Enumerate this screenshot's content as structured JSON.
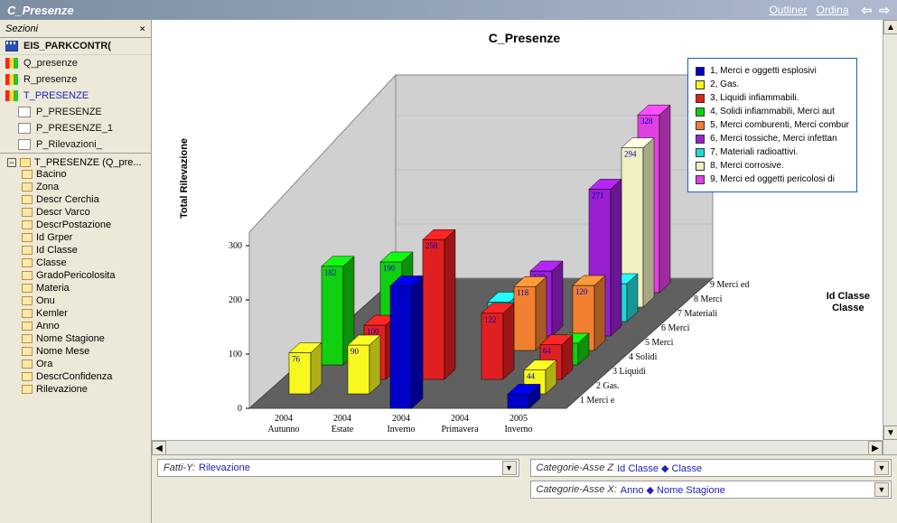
{
  "window": {
    "title": "C_Presenze"
  },
  "toolbar_links": [
    "Outliner",
    "Ordina"
  ],
  "sidebar": {
    "title": "Sezioni",
    "top_section": "EIS_PARKCONTR(",
    "items": [
      {
        "label": "Q_presenze"
      },
      {
        "label": "R_presenze"
      },
      {
        "label": "T_PRESENZE",
        "selected": true,
        "children": [
          {
            "label": "P_PRESENZE"
          },
          {
            "label": "P_PRESENZE_1"
          },
          {
            "label": "P_Rilevazioni_"
          }
        ]
      }
    ],
    "tree_root": "T_PRESENZE (Q_pre...",
    "fields": [
      "Bacino",
      "Zona",
      "Descr Cerchia",
      "Descr Varco",
      "DescrPostazione",
      "Id Grper",
      "Id Classe",
      "Classe",
      "GradoPericolosita",
      "Materia",
      "Onu",
      "Kemler",
      "Anno",
      "Nome Stagione",
      "Nome Mese",
      "Ora",
      "DescrConfidenza",
      "Rilevazione"
    ]
  },
  "chart": {
    "title": "C_Presenze",
    "type": "bar3d",
    "y_label": "Total Rilevazione",
    "z_label": "Id Classe\nClasse",
    "ylim": [
      0,
      300
    ],
    "ytick_step": 100,
    "background_color": "#ffffff",
    "wall_color": "#d0d0d0",
    "floor_color": "#606060",
    "x_categories": [
      {
        "year": "2004",
        "season": "Autunno"
      },
      {
        "year": "2004",
        "season": "Estate"
      },
      {
        "year": "2004",
        "season": "Inverno"
      },
      {
        "year": "2004",
        "season": "Primavera"
      },
      {
        "year": "2005",
        "season": "Inverno"
      }
    ],
    "z_categories": [
      "1 Merci e",
      "2 Gas.",
      "3 Liquidi",
      "4 Solidi",
      "5 Merci",
      "6 Merci",
      "7 Materiali",
      "8 Merci",
      "9 Merci ed"
    ],
    "series_colors": {
      "1": "#0000c8",
      "2": "#f8f820",
      "3": "#e02020",
      "4": "#10d010",
      "5": "#f08030",
      "6": "#9820d0",
      "7": "#20d8d8",
      "8": "#f0f0c0",
      "9": "#e040e0"
    },
    "data": [
      {
        "x": 0,
        "z": 2,
        "v": 76
      },
      {
        "x": 0,
        "z": 4,
        "v": 182
      },
      {
        "x": 1,
        "z": 2,
        "v": 90
      },
      {
        "x": 1,
        "z": 3,
        "v": 100
      },
      {
        "x": 1,
        "z": 4,
        "v": 190
      },
      {
        "x": 2,
        "z": 1,
        "v": 226
      },
      {
        "x": 2,
        "z": 3,
        "v": 258
      },
      {
        "x": 2,
        "z": 7,
        "v": 36
      },
      {
        "x": 3,
        "z": 3,
        "v": 122
      },
      {
        "x": 3,
        "z": 5,
        "v": 118
      },
      {
        "x": 3,
        "z": 6,
        "v": 120
      },
      {
        "x": 4,
        "z": 1,
        "v": 26
      },
      {
        "x": 4,
        "z": 2,
        "v": 44
      },
      {
        "x": 4,
        "z": 3,
        "v": 64
      },
      {
        "x": 4,
        "z": 5,
        "v": 120
      },
      {
        "x": 4,
        "z": 6,
        "v": 271
      },
      {
        "x": 4,
        "z": 8,
        "v": 294
      },
      {
        "x": 4,
        "z": 9,
        "v": 328
      },
      {
        "x": 4,
        "z": 7,
        "v": 70
      },
      {
        "x": 4,
        "z": 4,
        "v": 40
      }
    ],
    "legend": [
      {
        "color": "#0000c8",
        "label": "1, Merci e oggetti esplosivi"
      },
      {
        "color": "#f8f820",
        "label": "2, Gas."
      },
      {
        "color": "#e02020",
        "label": "3, Liquidi infiammabili."
      },
      {
        "color": "#10d010",
        "label": "4, Solidi infiammabili, Merci aut"
      },
      {
        "color": "#f08030",
        "label": "5, Merci comburenti, Merci combur"
      },
      {
        "color": "#9820d0",
        "label": "6, Merci tossiche, Merci infettan"
      },
      {
        "color": "#20d8d8",
        "label": "7, Materiali radioattivi."
      },
      {
        "color": "#f0f0c0",
        "label": "8, Merci corrosive."
      },
      {
        "color": "#e040e0",
        "label": "9, Merci ed oggetti pericolosi di"
      }
    ]
  },
  "footer": {
    "y_axis": {
      "label": "Fatti-Y:",
      "value": "Rilevazione"
    },
    "z_axis": {
      "label": "Categorie-Asse Z",
      "value": "Id Classe ◆ Classe"
    },
    "x_axis": {
      "label": "Categorie-Asse X:",
      "value": "Anno ◆ Nome Stagione"
    }
  }
}
